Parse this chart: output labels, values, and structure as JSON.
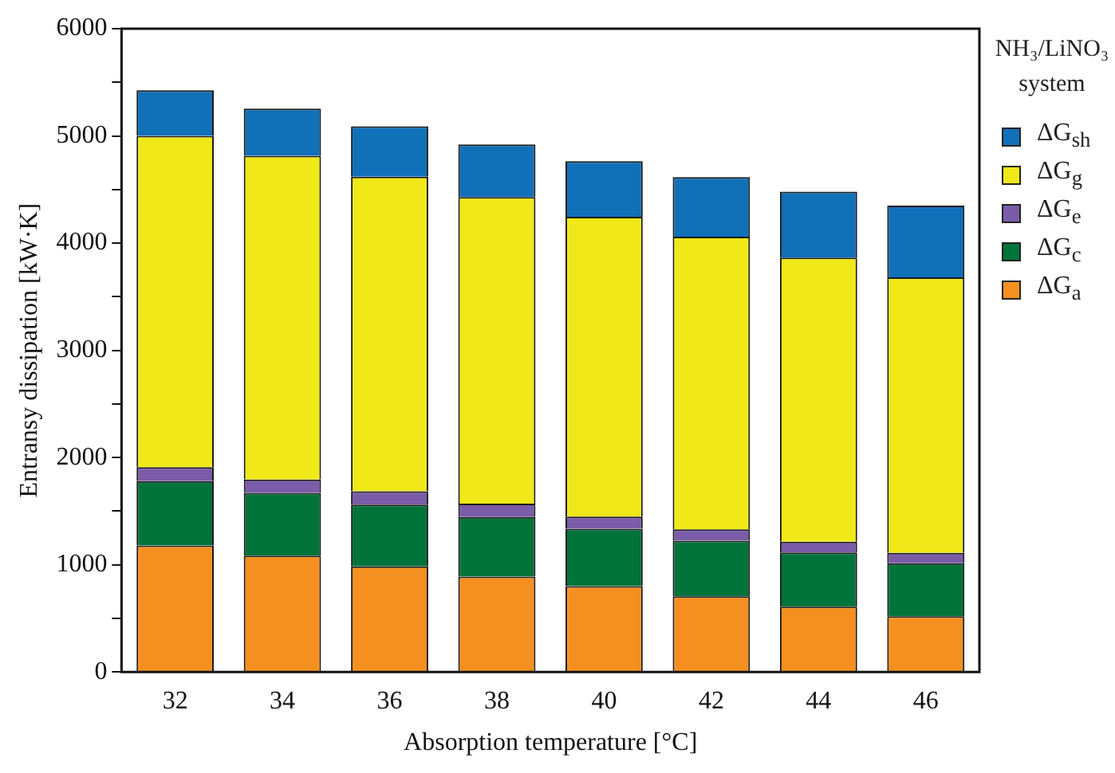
{
  "chart_data": {
    "type": "bar",
    "stacked": true,
    "xlabel": "Absorption temperature [°C]",
    "ylabel": "Entransy dissipation [kW·K]",
    "legend_title": "NH₃/LiNO₃ system",
    "legend": "right",
    "grid": false,
    "categories": [
      "32",
      "34",
      "36",
      "38",
      "40",
      "42",
      "44",
      "46"
    ],
    "ylim": [
      0,
      6000
    ],
    "yticks": [
      0,
      {
        "value": 500,
        "label": null
      },
      1000,
      {
        "value": 1500,
        "label": null
      },
      2000,
      {
        "value": 2500,
        "label": null
      },
      3000,
      {
        "value": 3500,
        "label": null
      },
      4000,
      {
        "value": 4500,
        "label": null
      },
      5000,
      {
        "value": 5500,
        "label": null
      },
      6000
    ],
    "series": [
      {
        "name": "ΔG$_{a}$",
        "color": "#f59020",
        "values": [
          1180,
          1085,
          985,
          890,
          800,
          705,
          610,
          520
        ]
      },
      {
        "name": "ΔG$_{c}$",
        "color": "#00733a",
        "values": [
          600,
          585,
          575,
          555,
          535,
          520,
          505,
          495
        ]
      },
      {
        "name": "ΔG$_{e}$",
        "color": "#7a5ca8",
        "values": [
          130,
          125,
          125,
          125,
          115,
          105,
          100,
          95
        ]
      },
      {
        "name": "ΔG$_{g}$",
        "color": "#f0e818",
        "values": [
          3090,
          3020,
          2935,
          2860,
          2795,
          2730,
          2650,
          2570
        ]
      },
      {
        "name": "ΔG$_{sh}$",
        "color": "#1070b8",
        "values": [
          425,
          440,
          470,
          490,
          520,
          555,
          615,
          670
        ]
      }
    ]
  }
}
